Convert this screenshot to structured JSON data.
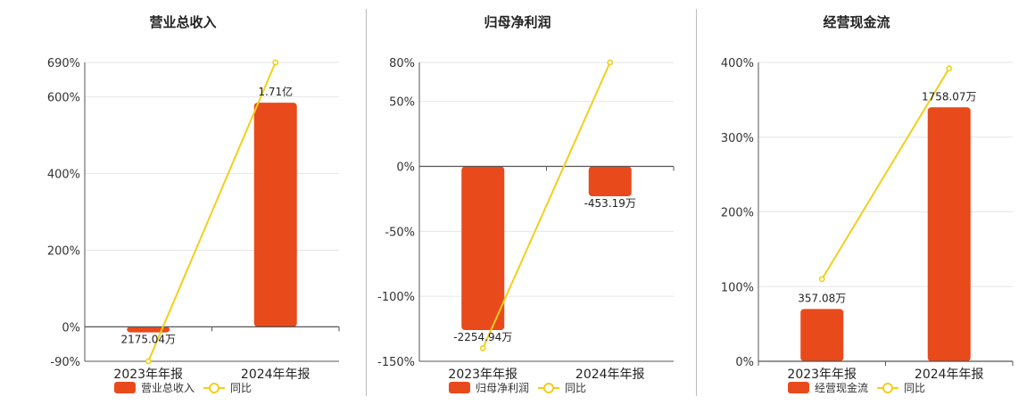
{
  "colors": {
    "bar": "#e84a1b",
    "line": "#f2cf1c",
    "grid": "#e6e6e6",
    "axis": "#555555"
  },
  "chart_data": [
    {
      "type": "bar",
      "title": "营业总收入",
      "categories": [
        "2023年年报",
        "2024年年报"
      ],
      "bar_values": [
        -14.5,
        585
      ],
      "bar_labels": [
        "2175.04万",
        "1.71亿"
      ],
      "line_values": [
        -90,
        690
      ],
      "y_ticks": [
        690,
        600,
        400,
        200,
        0,
        -90
      ],
      "y_tick_labels": [
        "690%",
        "600%",
        "400%",
        "200%",
        "0%",
        "-90%"
      ],
      "ylim": [
        -90,
        690
      ],
      "legend": {
        "bar": "营业总收入",
        "line": "同比"
      }
    },
    {
      "type": "bar",
      "title": "归母净利润",
      "categories": [
        "2023年年报",
        "2024年年报"
      ],
      "bar_values": [
        -126,
        -23
      ],
      "bar_labels": [
        "-2254.94万",
        "-453.19万"
      ],
      "line_values": [
        -140,
        80
      ],
      "y_ticks": [
        80,
        50,
        0,
        -50,
        -100,
        -150
      ],
      "y_tick_labels": [
        "80%",
        "50%",
        "0%",
        "-50%",
        "-100%",
        "-150%"
      ],
      "ylim": [
        -150,
        80
      ],
      "legend": {
        "bar": "归母净利润",
        "line": "同比"
      }
    },
    {
      "type": "bar",
      "title": "经营现金流",
      "categories": [
        "2023年年报",
        "2024年年报"
      ],
      "bar_values": [
        70,
        340
      ],
      "bar_labels": [
        "357.08万",
        "1758.07万"
      ],
      "line_values": [
        110,
        392
      ],
      "y_ticks": [
        400,
        300,
        200,
        100,
        0
      ],
      "y_tick_labels": [
        "400%",
        "300%",
        "200%",
        "100%",
        "0%"
      ],
      "ylim": [
        0,
        400
      ],
      "legend": {
        "bar": "经营现金流",
        "line": "同比"
      }
    }
  ]
}
